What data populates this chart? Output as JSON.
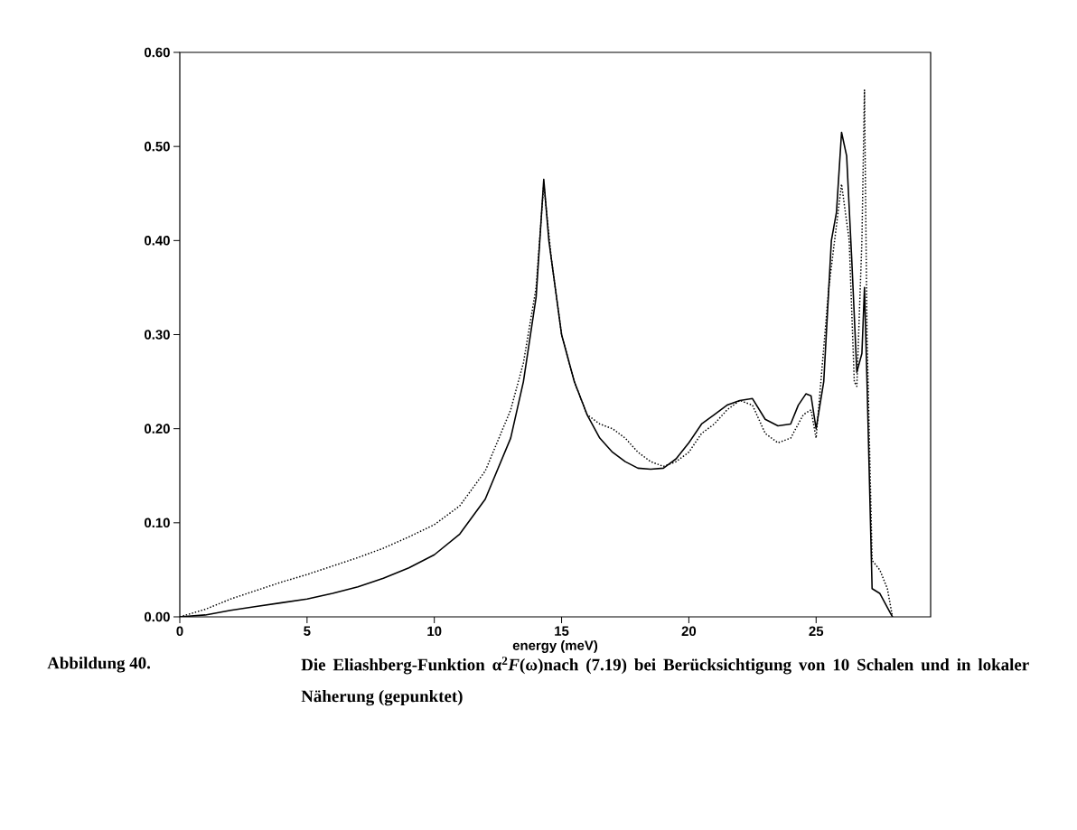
{
  "chart_data": {
    "type": "line",
    "xlabel": "energy (meV)",
    "xlim": [
      0,
      29.5
    ],
    "xticks": [
      0,
      5,
      10,
      15,
      20,
      25
    ],
    "ylim": [
      0,
      0.6
    ],
    "yticks": [
      {
        "value": 0,
        "label": "0.00"
      },
      {
        "value": 0.1,
        "label": "0.10"
      },
      {
        "value": 0.2,
        "label": "0.20"
      },
      {
        "value": 0.3,
        "label": "0.30"
      },
      {
        "value": 0.4,
        "label": "0.40"
      },
      {
        "value": 0.5,
        "label": "0.50"
      },
      {
        "value": 0.6,
        "label": "0.60"
      }
    ],
    "grid": false,
    "marker": "none",
    "series": [
      {
        "color": "#000000",
        "line_style": "solid",
        "x": [
          0,
          1,
          2,
          3,
          4,
          5,
          6,
          7,
          8,
          9,
          10,
          11,
          12,
          13,
          13.5,
          14,
          14.3,
          14.5,
          15,
          15.5,
          16,
          16.5,
          17,
          17.5,
          18,
          18.5,
          19,
          19.5,
          20,
          20.5,
          21,
          21.5,
          22,
          22.5,
          23,
          23.5,
          24,
          24.3,
          24.6,
          24.8,
          25,
          25.3,
          25.6,
          25.8,
          26,
          26.2,
          26.4,
          26.6,
          26.8,
          26.9,
          27.0,
          27.2,
          27.5,
          27.9,
          28
        ],
        "values": [
          0,
          0.002,
          0.007,
          0.011,
          0.015,
          0.019,
          0.025,
          0.032,
          0.041,
          0.052,
          0.066,
          0.088,
          0.125,
          0.19,
          0.25,
          0.34,
          0.465,
          0.4,
          0.3,
          0.25,
          0.215,
          0.19,
          0.175,
          0.165,
          0.158,
          0.157,
          0.158,
          0.168,
          0.185,
          0.205,
          0.215,
          0.225,
          0.23,
          0.232,
          0.21,
          0.203,
          0.205,
          0.225,
          0.237,
          0.235,
          0.2,
          0.25,
          0.4,
          0.43,
          0.515,
          0.49,
          0.38,
          0.26,
          0.28,
          0.35,
          0.25,
          0.03,
          0.025,
          0.005,
          0
        ]
      },
      {
        "color": "#000000",
        "line_style": "dotted",
        "x": [
          0,
          1,
          2,
          3,
          4,
          5,
          6,
          7,
          8,
          9,
          10,
          11,
          12,
          13,
          13.5,
          14,
          14.3,
          14.6,
          15,
          15.5,
          16,
          16.5,
          17,
          17.5,
          18,
          18.5,
          19,
          19.5,
          20,
          20.5,
          21,
          21.5,
          22,
          22.5,
          23,
          23.5,
          24,
          24.5,
          24.8,
          25,
          25.5,
          26,
          26.3,
          26.5,
          26.6,
          26.8,
          26.9,
          27.0,
          27.2,
          27.5,
          27.8,
          28
        ],
        "values": [
          0,
          0.008,
          0.019,
          0.028,
          0.037,
          0.045,
          0.054,
          0.063,
          0.073,
          0.085,
          0.098,
          0.118,
          0.155,
          0.22,
          0.27,
          0.35,
          0.46,
          0.38,
          0.3,
          0.25,
          0.215,
          0.205,
          0.2,
          0.19,
          0.175,
          0.165,
          0.16,
          0.165,
          0.175,
          0.195,
          0.205,
          0.22,
          0.23,
          0.225,
          0.195,
          0.185,
          0.19,
          0.215,
          0.22,
          0.19,
          0.35,
          0.46,
          0.4,
          0.25,
          0.245,
          0.4,
          0.56,
          0.3,
          0.06,
          0.05,
          0.03,
          0
        ]
      }
    ],
    "annotations": [
      "Abbildung 40.",
      "Die Eliashberg-Funktion α$^{2}$*F*(ω)nach (7.19) bei Berücksichtigung von 10 Schalen und in lokaler Näherung (gepunktet)"
    ]
  }
}
